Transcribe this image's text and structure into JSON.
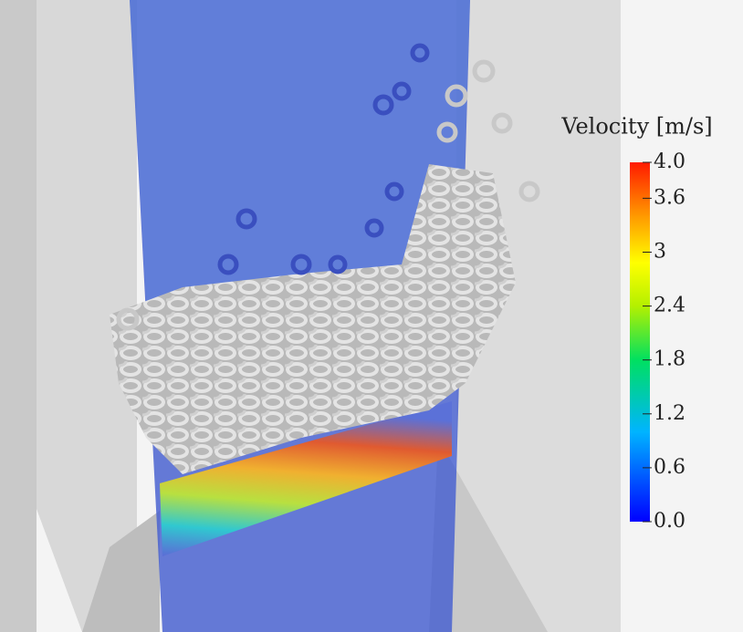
{
  "colorbar": {
    "title": "Velocity [m/s]",
    "range": [
      0,
      4
    ],
    "ticks": [
      {
        "value": 4,
        "label": "4.0"
      },
      3.6,
      3,
      2.4,
      1.8,
      1.2,
      0.6,
      {
        "value": 0,
        "label": "0.0"
      }
    ]
  }
}
